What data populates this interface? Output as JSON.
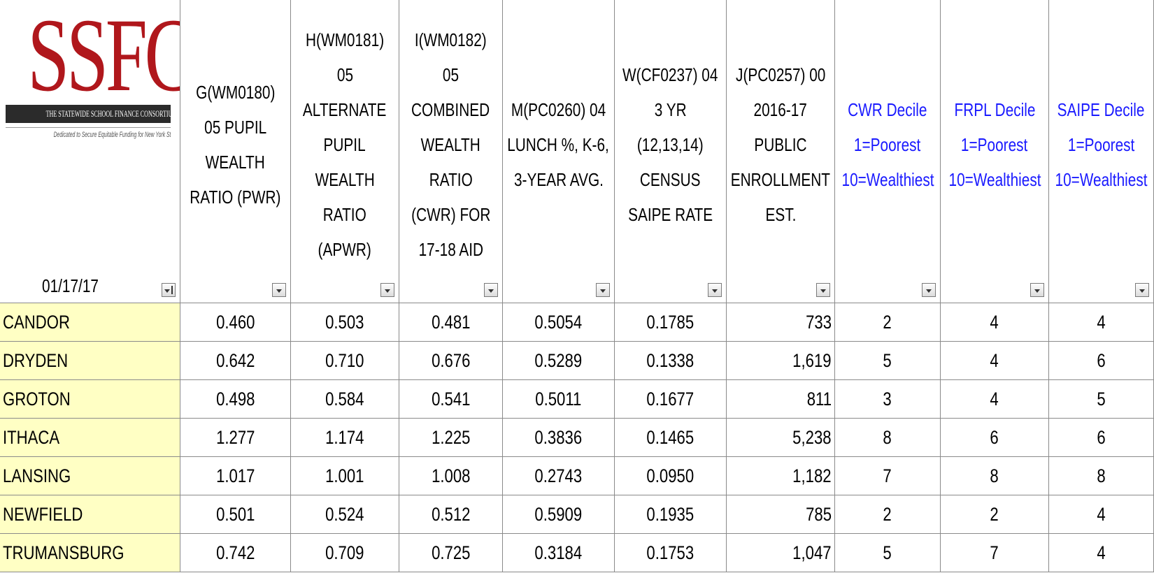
{
  "logo": {
    "title": "SSFC",
    "band": "THE STATEWIDE SCHOOL FINANCE CONSORTIUM",
    "tagline": "Dedicated to Secure Equitable Funding for New York State Public Schools"
  },
  "date": "01/17/17",
  "table": {
    "headers": [
      [
        "G(WM0180)",
        "05 PUPIL",
        "WEALTH",
        "RATIO (PWR)"
      ],
      [
        "H(WM0181)",
        "05",
        "ALTERNATE",
        "PUPIL",
        "WEALTH",
        "RATIO",
        "(APWR)"
      ],
      [
        "I(WM0182)",
        "05",
        "COMBINED",
        "WEALTH",
        "RATIO",
        "(CWR) FOR",
        "17-18 AID"
      ],
      [
        "M(PC0260) 04",
        "LUNCH %, K-6,",
        "3-YEAR AVG."
      ],
      [
        "W(CF0237) 04",
        "3 YR",
        "(12,13,14)",
        "CENSUS",
        "SAIPE RATE"
      ],
      [
        "J(PC0257) 00",
        "2016-17",
        "PUBLIC",
        "ENROLLMENT",
        "EST."
      ],
      [
        "CWR Decile",
        "1=Poorest",
        "10=Wealthiest"
      ],
      [
        "FRPL Decile",
        "1=Poorest",
        "10=Wealthiest"
      ],
      [
        "SAIPE Decile",
        "1=Poorest",
        "10=Wealthiest"
      ]
    ],
    "rows": [
      [
        "CANDOR",
        "0.460",
        "0.503",
        "0.481",
        "0.5054",
        "0.1785",
        "733",
        "2",
        "4",
        "4"
      ],
      [
        "DRYDEN",
        "0.642",
        "0.710",
        "0.676",
        "0.5289",
        "0.1338",
        "1,619",
        "5",
        "4",
        "6"
      ],
      [
        "GROTON",
        "0.498",
        "0.584",
        "0.541",
        "0.5011",
        "0.1677",
        "811",
        "3",
        "4",
        "5"
      ],
      [
        "ITHACA",
        "1.277",
        "1.174",
        "1.225",
        "0.3836",
        "0.1465",
        "5,238",
        "8",
        "6",
        "6"
      ],
      [
        "LANSING",
        "1.017",
        "1.001",
        "1.008",
        "0.2743",
        "0.0950",
        "1,182",
        "7",
        "8",
        "8"
      ],
      [
        "NEWFIELD",
        "0.501",
        "0.524",
        "0.512",
        "0.5909",
        "0.1935",
        "785",
        "2",
        "2",
        "4"
      ],
      [
        "TRUMANSBURG",
        "0.742",
        "0.709",
        "0.725",
        "0.3184",
        "0.1753",
        "1,047",
        "5",
        "7",
        "4"
      ]
    ]
  }
}
